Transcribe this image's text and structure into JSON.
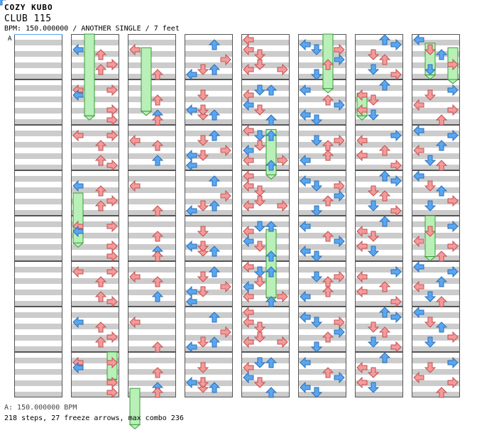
{
  "header": {
    "artist": "COZY KUBO",
    "title": "CLUB 115",
    "meta": "BPM: 150.000000 / ANOTHER SINGLE / 7 feet"
  },
  "segment_marker": "A",
  "footer": {
    "bpm_line": "A: 150.000000 BPM",
    "stats_line": "218 steps, 27 freeze arrows, max combo 236"
  },
  "colors": {
    "blue_arrow": "#5aa6f0",
    "red_arrow": "#f59a9a",
    "freeze": "#b8f0b8",
    "stripe": "#cccccc"
  },
  "chart_layout": {
    "columns": 8,
    "measures_per_column": 8,
    "lanes": [
      "left",
      "down",
      "up",
      "right"
    ],
    "lane_icons": [
      "left-arrow-icon",
      "down-arrow-icon",
      "up-arrow-icon",
      "right-arrow-icon"
    ]
  },
  "notes": [
    [
      0,
      7,
      0,
      "r"
    ],
    [
      0,
      7,
      2,
      "b"
    ],
    [
      0,
      7,
      6,
      "r"
    ],
    [
      1,
      0,
      1,
      "r"
    ],
    [
      1,
      3,
      1,
      "r"
    ],
    [
      1,
      2,
      3,
      "r"
    ],
    [
      1,
      0,
      2,
      "b"
    ],
    [
      1,
      2,
      6,
      "r"
    ],
    [
      1,
      3,
      5,
      "r"
    ],
    [
      1,
      6,
      1,
      "b"
    ],
    [
      1,
      4,
      3,
      "b"
    ],
    [
      1,
      3,
      7,
      "r"
    ],
    [
      2,
      0,
      2,
      "r"
    ],
    [
      2,
      2,
      3,
      "r"
    ],
    [
      2,
      2,
      6,
      "b"
    ],
    [
      2,
      2,
      7,
      "r"
    ],
    [
      3,
      0,
      5,
      "b"
    ],
    [
      3,
      1,
      2,
      "r"
    ],
    [
      3,
      2,
      6,
      "b"
    ],
    [
      3,
      1,
      6,
      "r"
    ],
    [
      3,
      0,
      7,
      "b"
    ],
    [
      3,
      3,
      4,
      "r"
    ],
    [
      3,
      2,
      1,
      "b"
    ],
    [
      3,
      1,
      5,
      "r"
    ],
    [
      4,
      0,
      0,
      "r"
    ],
    [
      4,
      0,
      2,
      "r"
    ],
    [
      4,
      0,
      6,
      "r"
    ],
    [
      4,
      1,
      1,
      "b"
    ],
    [
      4,
      1,
      3,
      "r"
    ],
    [
      4,
      2,
      7,
      "b"
    ],
    [
      4,
      3,
      6,
      "r"
    ],
    [
      4,
      0,
      4,
      "b"
    ],
    [
      4,
      1,
      5,
      "r"
    ],
    [
      4,
      2,
      1,
      "b"
    ],
    [
      5,
      0,
      1,
      "b"
    ],
    [
      5,
      1,
      2,
      "b"
    ],
    [
      5,
      2,
      3,
      "r"
    ],
    [
      5,
      3,
      4,
      "b"
    ],
    [
      5,
      0,
      6,
      "b"
    ],
    [
      5,
      1,
      7,
      "b"
    ],
    [
      5,
      3,
      2,
      "r"
    ],
    [
      5,
      2,
      5,
      "r"
    ],
    [
      6,
      0,
      2,
      "r"
    ],
    [
      6,
      1,
      3,
      "r"
    ],
    [
      6,
      2,
      0,
      "b"
    ],
    [
      6,
      3,
      1,
      "b"
    ],
    [
      6,
      0,
      5,
      "r"
    ],
    [
      6,
      1,
      6,
      "b"
    ],
    [
      6,
      2,
      4,
      "r"
    ],
    [
      6,
      3,
      7,
      "r"
    ],
    [
      7,
      0,
      0,
      "b"
    ],
    [
      7,
      3,
      1,
      "b"
    ],
    [
      7,
      1,
      2,
      "r"
    ],
    [
      7,
      2,
      3,
      "b"
    ],
    [
      7,
      0,
      4,
      "r"
    ],
    [
      7,
      3,
      5,
      "r"
    ],
    [
      7,
      1,
      6,
      "b"
    ],
    [
      7,
      2,
      7,
      "r"
    ]
  ],
  "freezes": [
    [
      1,
      1,
      0.0,
      1.8
    ],
    [
      1,
      0,
      3.5,
      4.6
    ],
    [
      1,
      3,
      7.0,
      7.6
    ],
    [
      2,
      1,
      0.3,
      1.7
    ],
    [
      2,
      0,
      7.8,
      8.6
    ],
    [
      4,
      2,
      2.1,
      3.1
    ],
    [
      4,
      2,
      4.3,
      5.8
    ],
    [
      5,
      2,
      0.0,
      1.2
    ],
    [
      6,
      0,
      1.3,
      1.8
    ],
    [
      7,
      1,
      0.2,
      0.9
    ],
    [
      7,
      3,
      0.3,
      1.0
    ],
    [
      7,
      1,
      4.0,
      4.9
    ],
    [
      8,
      0,
      0.0,
      1.8
    ],
    [
      8,
      3,
      0.0,
      1.8
    ],
    [
      8,
      0,
      7.0,
      8.0
    ],
    [
      8,
      3,
      7.0,
      8.0
    ]
  ]
}
